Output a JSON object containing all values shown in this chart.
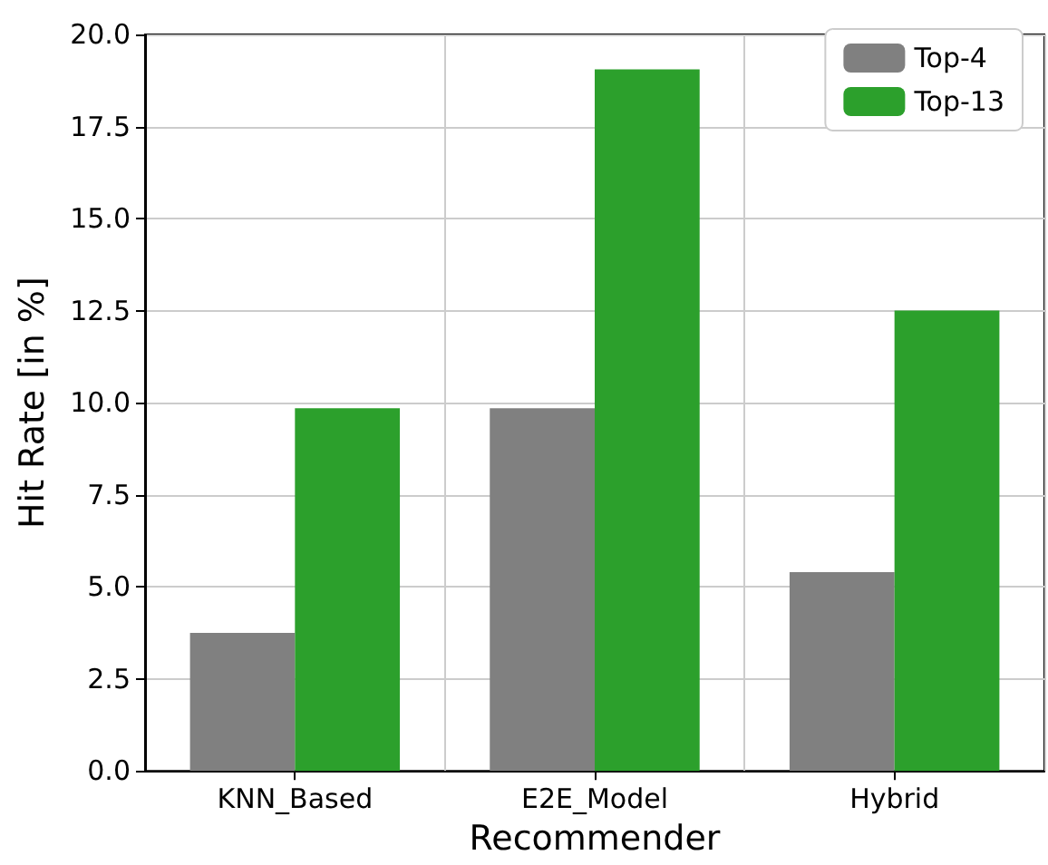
{
  "chart_data": {
    "type": "bar",
    "xlabel": "Recommender",
    "ylabel": "Hit Rate [in %]",
    "categories": [
      "KNN_Based",
      "E2E_Model",
      "Hybrid"
    ],
    "series": [
      {
        "name": "Top-4",
        "color": "#808080",
        "values": [
          3.75,
          9.85,
          5.4
        ]
      },
      {
        "name": "Top-13",
        "color": "#2ca02c",
        "values": [
          9.85,
          19.05,
          12.5
        ]
      }
    ],
    "ylim": [
      0,
      20
    ],
    "yticks": [
      {
        "value": 0,
        "label": "0.0"
      },
      {
        "value": 2.5,
        "label": "2.5"
      },
      {
        "value": 5,
        "label": "5.0"
      },
      {
        "value": 7.5,
        "label": "7.5"
      },
      {
        "value": 10,
        "label": "10.0"
      },
      {
        "value": 12.5,
        "label": "12.5"
      },
      {
        "value": 15,
        "label": "15.0"
      },
      {
        "value": 17.5,
        "label": "17.5"
      },
      {
        "value": 20,
        "label": "20.0"
      }
    ],
    "grid": true,
    "legend": "top right"
  }
}
